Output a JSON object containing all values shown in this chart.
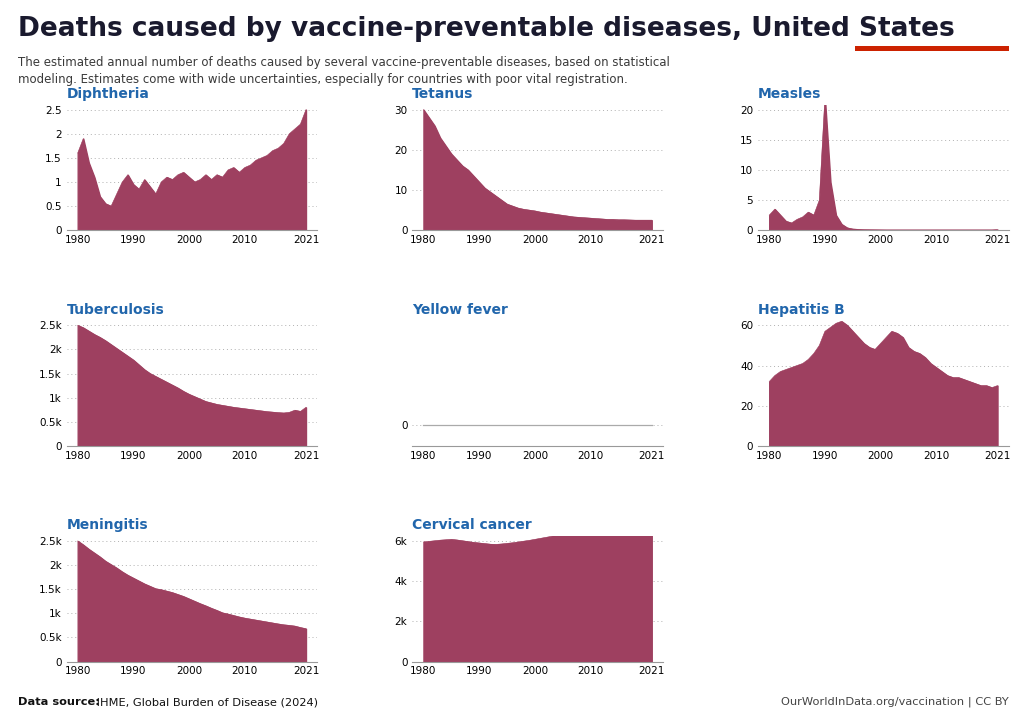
{
  "title": "Deaths caused by vaccine-preventable diseases, United States",
  "subtitle": "The estimated annual number of deaths caused by several vaccine-preventable diseases, based on statistical\nmodeling. Estimates come with wide uncertainties, especially for countries with poor vital registration.",
  "source_bold": "Data source:",
  "source_rest": " IHME, Global Burden of Disease (2024)",
  "website": "OurWorldInData.org/vaccination | CC BY",
  "fill_color": "#9e4060",
  "fill_alpha": 1.0,
  "background_color": "#ffffff",
  "title_color": "#1a1a2e",
  "subtitle_color": "#3a3a3a",
  "subheading_color": "#2166ac",
  "years": [
    1980,
    1981,
    1982,
    1983,
    1984,
    1985,
    1986,
    1987,
    1988,
    1989,
    1990,
    1991,
    1992,
    1993,
    1994,
    1995,
    1996,
    1997,
    1998,
    1999,
    2000,
    2001,
    2002,
    2003,
    2004,
    2005,
    2006,
    2007,
    2008,
    2009,
    2010,
    2011,
    2012,
    2013,
    2014,
    2015,
    2016,
    2017,
    2018,
    2019,
    2020,
    2021
  ],
  "diphtheria": [
    1.6,
    1.9,
    1.4,
    1.1,
    0.7,
    0.55,
    0.5,
    0.75,
    1.0,
    1.15,
    0.95,
    0.85,
    1.05,
    0.9,
    0.75,
    1.0,
    1.1,
    1.05,
    1.15,
    1.2,
    1.1,
    1.0,
    1.05,
    1.15,
    1.05,
    1.15,
    1.1,
    1.25,
    1.3,
    1.2,
    1.3,
    1.35,
    1.45,
    1.5,
    1.55,
    1.65,
    1.7,
    1.8,
    2.0,
    2.1,
    2.2,
    2.5
  ],
  "tetanus": [
    30,
    28,
    26,
    23,
    21,
    19,
    17.5,
    16,
    15,
    13.5,
    12,
    10.5,
    9.5,
    8.5,
    7.5,
    6.5,
    6.0,
    5.5,
    5.2,
    5.0,
    4.8,
    4.5,
    4.3,
    4.1,
    3.9,
    3.7,
    3.5,
    3.3,
    3.2,
    3.1,
    3.0,
    2.9,
    2.8,
    2.7,
    2.7,
    2.6,
    2.6,
    2.55,
    2.5,
    2.5,
    2.5,
    2.5
  ],
  "measles": [
    2.5,
    3.5,
    2.5,
    1.5,
    1.2,
    1.8,
    2.2,
    3.0,
    2.5,
    5.0,
    22.0,
    8.0,
    2.5,
    1.0,
    0.4,
    0.2,
    0.15,
    0.1,
    0.08,
    0.07,
    0.06,
    0.05,
    0.05,
    0.05,
    0.05,
    0.05,
    0.05,
    0.05,
    0.05,
    0.05,
    0.05,
    0.05,
    0.05,
    0.05,
    0.05,
    0.05,
    0.05,
    0.05,
    0.05,
    0.05,
    0.05,
    0.1
  ],
  "tuberculosis": [
    2500,
    2450,
    2380,
    2310,
    2250,
    2180,
    2100,
    2020,
    1940,
    1860,
    1780,
    1680,
    1580,
    1500,
    1440,
    1380,
    1320,
    1260,
    1200,
    1130,
    1070,
    1020,
    970,
    920,
    890,
    860,
    840,
    820,
    800,
    785,
    770,
    755,
    740,
    725,
    710,
    700,
    690,
    682,
    695,
    740,
    715,
    800
  ],
  "yellow_fever": [
    0,
    0,
    0,
    0,
    0,
    0,
    0,
    0,
    0,
    0,
    0,
    0,
    0,
    0,
    0,
    0,
    0,
    0,
    0,
    0,
    0,
    0,
    0,
    0,
    0,
    0,
    0,
    0,
    0,
    0,
    0,
    0,
    0,
    0,
    0,
    0,
    0,
    0,
    0,
    0,
    0,
    0
  ],
  "hepatitis_b": [
    32,
    35,
    37,
    38,
    39,
    40,
    41,
    43,
    46,
    50,
    57,
    59,
    61,
    62,
    60,
    57,
    54,
    51,
    49,
    48,
    51,
    54,
    57,
    56,
    54,
    49,
    47,
    46,
    44,
    41,
    39,
    37,
    35,
    34,
    34,
    33,
    32,
    31,
    30,
    30,
    29,
    30
  ],
  "meningitis": [
    2500,
    2420,
    2330,
    2250,
    2170,
    2080,
    2010,
    1940,
    1860,
    1790,
    1730,
    1670,
    1610,
    1560,
    1510,
    1490,
    1460,
    1430,
    1390,
    1350,
    1300,
    1250,
    1200,
    1155,
    1105,
    1060,
    1010,
    985,
    955,
    925,
    900,
    880,
    860,
    840,
    820,
    800,
    780,
    762,
    750,
    735,
    705,
    680
  ],
  "cervical_cancer": [
    5950,
    5980,
    6010,
    6040,
    6060,
    6080,
    6050,
    6010,
    5970,
    5930,
    5900,
    5870,
    5840,
    5830,
    5850,
    5880,
    5910,
    5950,
    5990,
    6030,
    6080,
    6130,
    6180,
    6230,
    6280,
    6330,
    6380,
    6430,
    6480,
    6530,
    6590,
    6640,
    6690,
    6740,
    6790,
    6840,
    6890,
    6940,
    6990,
    7040,
    6880,
    6980
  ],
  "diphtheria_yticks": [
    0,
    0.5,
    1,
    1.5,
    2,
    2.5
  ],
  "tetanus_yticks": [
    0,
    10,
    20,
    30
  ],
  "measles_yticks": [
    0,
    5,
    10,
    15,
    20
  ],
  "tuberculosis_yticks": [
    0,
    500,
    1000,
    1500,
    2000,
    2500
  ],
  "hepatitis_b_yticks": [
    0,
    20,
    40,
    60
  ],
  "meningitis_yticks": [
    0,
    500,
    1000,
    1500,
    2000,
    2500
  ],
  "cervical_cancer_yticks": [
    0,
    2000,
    4000,
    6000
  ],
  "xticks": [
    1980,
    1990,
    2000,
    2010,
    2021
  ],
  "logo_bg": "#1a3461",
  "logo_red": "#cc2200"
}
